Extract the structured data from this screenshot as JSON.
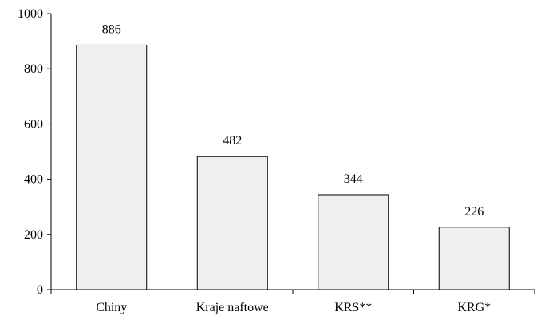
{
  "chart_data": {
    "type": "bar",
    "title": "",
    "xlabel": "",
    "ylabel": "",
    "categories": [
      "Chiny",
      "Kraje naftowe",
      "KRS**",
      "KRG*"
    ],
    "values": [
      886,
      482,
      344,
      226
    ],
    "data_labels": [
      "886",
      "482",
      "344",
      "226"
    ],
    "ylim": [
      0,
      1000
    ],
    "yticks": [
      0,
      200,
      400,
      600,
      800,
      1000
    ],
    "ytick_labels": [
      "0",
      "200",
      "400",
      "600",
      "800",
      "1000"
    ],
    "grid": false,
    "legend": "none",
    "colors": {
      "bar_fill": "#efefef",
      "bar_stroke": "#000000",
      "axis": "#000000"
    }
  }
}
